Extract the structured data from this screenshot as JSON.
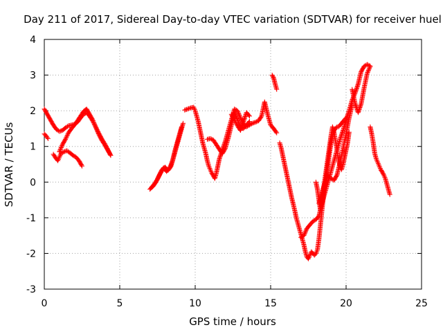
{
  "chart_data": {
    "type": "scatter",
    "title": "Day 211 of 2017, Sidereal Day-to-day VTEC variation (SDTVAR) for receiver huel",
    "xlabel": "GPS time / hours",
    "ylabel": "SDTVAR / TECUs",
    "xlim": [
      0,
      25
    ],
    "ylim": [
      -3,
      4
    ],
    "xticks": [
      0,
      5,
      10,
      15,
      20,
      25
    ],
    "yticks": [
      -3,
      -2,
      -1,
      0,
      1,
      2,
      3,
      4
    ],
    "grid": true,
    "marker": "+",
    "color": "#ff0000",
    "series": [
      {
        "name": "SDTVAR",
        "segments": [
          [
            [
              0.0,
              2.05
            ],
            [
              0.2,
              1.9
            ],
            [
              0.4,
              1.75
            ],
            [
              0.6,
              1.6
            ],
            [
              0.8,
              1.48
            ],
            [
              1.0,
              1.42
            ],
            [
              1.2,
              1.45
            ],
            [
              1.4,
              1.52
            ],
            [
              1.6,
              1.58
            ],
            [
              1.8,
              1.6
            ],
            [
              2.0,
              1.62
            ],
            [
              2.2,
              1.68
            ],
            [
              2.4,
              1.8
            ],
            [
              2.6,
              1.9
            ],
            [
              2.8,
              1.95
            ],
            [
              3.0,
              1.85
            ],
            [
              3.2,
              1.72
            ],
            [
              3.4,
              1.55
            ],
            [
              3.6,
              1.35
            ],
            [
              3.8,
              1.18
            ],
            [
              4.0,
              1.05
            ],
            [
              4.2,
              0.9
            ],
            [
              4.4,
              0.75
            ]
          ],
          [
            [
              0.0,
              1.35
            ],
            [
              0.15,
              1.28
            ],
            [
              0.25,
              1.22
            ]
          ],
          [
            [
              0.6,
              0.78
            ],
            [
              0.8,
              0.65
            ],
            [
              0.9,
              0.6
            ],
            [
              1.0,
              0.7
            ],
            [
              1.1,
              0.8
            ],
            [
              1.3,
              0.85
            ],
            [
              1.5,
              0.88
            ],
            [
              1.7,
              0.82
            ],
            [
              1.9,
              0.75
            ],
            [
              2.1,
              0.7
            ],
            [
              2.3,
              0.6
            ],
            [
              2.5,
              0.45
            ]
          ],
          [
            [
              1.0,
              0.85
            ],
            [
              1.2,
              1.05
            ],
            [
              1.4,
              1.2
            ],
            [
              1.6,
              1.38
            ],
            [
              1.8,
              1.5
            ],
            [
              2.0,
              1.6
            ],
            [
              2.2,
              1.72
            ],
            [
              2.4,
              1.85
            ],
            [
              2.6,
              1.98
            ],
            [
              2.8,
              2.05
            ],
            [
              3.0,
              1.9
            ],
            [
              3.2,
              1.75
            ],
            [
              3.4,
              1.55
            ],
            [
              3.6,
              1.38
            ],
            [
              3.8,
              1.22
            ],
            [
              4.0,
              1.08
            ],
            [
              4.2,
              0.92
            ],
            [
              4.4,
              0.75
            ]
          ],
          [
            [
              7.0,
              -0.2
            ],
            [
              7.2,
              -0.12
            ],
            [
              7.4,
              0.0
            ],
            [
              7.6,
              0.18
            ],
            [
              7.8,
              0.35
            ],
            [
              8.0,
              0.42
            ],
            [
              8.2,
              0.33
            ],
            [
              8.4,
              0.45
            ],
            [
              8.6,
              0.75
            ],
            [
              8.8,
              1.05
            ],
            [
              9.0,
              1.35
            ],
            [
              9.2,
              1.65
            ]
          ],
          [
            [
              7.1,
              -0.15
            ],
            [
              7.3,
              -0.05
            ],
            [
              7.5,
              0.08
            ],
            [
              7.7,
              0.25
            ],
            [
              7.9,
              0.4
            ],
            [
              8.1,
              0.3
            ],
            [
              8.3,
              0.38
            ],
            [
              8.5,
              0.6
            ],
            [
              8.7,
              0.95
            ],
            [
              8.9,
              1.25
            ],
            [
              9.1,
              1.55
            ]
          ],
          [
            [
              9.3,
              2.02
            ],
            [
              9.5,
              2.05
            ],
            [
              9.7,
              2.08
            ],
            [
              9.9,
              2.1
            ],
            [
              10.0,
              2.0
            ],
            [
              10.1,
              1.85
            ],
            [
              10.2,
              1.7
            ],
            [
              10.3,
              1.5
            ],
            [
              10.4,
              1.3
            ],
            [
              10.5,
              1.1
            ],
            [
              10.6,
              0.95
            ],
            [
              10.7,
              0.8
            ],
            [
              10.8,
              0.6
            ],
            [
              10.9,
              0.45
            ],
            [
              11.0,
              0.35
            ],
            [
              11.1,
              0.25
            ],
            [
              11.2,
              0.18
            ],
            [
              11.3,
              0.1
            ],
            [
              11.4,
              0.25
            ],
            [
              11.5,
              0.45
            ],
            [
              11.6,
              0.65
            ],
            [
              11.8,
              0.9
            ],
            [
              12.0,
              1.15
            ],
            [
              12.2,
              1.45
            ],
            [
              12.4,
              1.75
            ],
            [
              12.6,
              2.05
            ],
            [
              12.8,
              2.0
            ],
            [
              13.0,
              1.8
            ],
            [
              13.2,
              1.62
            ],
            [
              13.4,
              1.55
            ],
            [
              13.6,
              1.6
            ],
            [
              13.8,
              1.65
            ],
            [
              14.0,
              1.68
            ],
            [
              14.2,
              1.72
            ],
            [
              14.4,
              1.85
            ],
            [
              14.6,
              2.25
            ],
            [
              14.8,
              1.9
            ],
            [
              15.0,
              1.6
            ],
            [
              15.2,
              1.5
            ],
            [
              15.4,
              1.38
            ]
          ],
          [
            [
              10.8,
              1.2
            ],
            [
              11.0,
              1.22
            ],
            [
              11.2,
              1.18
            ],
            [
              11.4,
              1.05
            ],
            [
              11.6,
              0.92
            ],
            [
              11.8,
              0.8
            ],
            [
              12.0,
              0.95
            ],
            [
              12.2,
              1.25
            ],
            [
              12.4,
              1.6
            ],
            [
              12.6,
              1.95
            ],
            [
              12.8,
              1.75
            ],
            [
              13.0,
              1.55
            ],
            [
              13.2,
              1.5
            ],
            [
              13.4,
              1.6
            ],
            [
              13.6,
              1.7
            ]
          ],
          [
            [
              12.4,
              1.9
            ],
            [
              12.6,
              1.75
            ],
            [
              12.8,
              1.58
            ],
            [
              13.0,
              1.45
            ],
            [
              13.2,
              1.7
            ],
            [
              13.4,
              1.95
            ],
            [
              13.6,
              1.85
            ]
          ],
          [
            [
              15.1,
              3.0
            ],
            [
              15.2,
              2.92
            ],
            [
              15.3,
              2.75
            ],
            [
              15.4,
              2.6
            ]
          ],
          [
            [
              15.6,
              1.1
            ],
            [
              15.7,
              0.95
            ],
            [
              15.8,
              0.75
            ],
            [
              15.9,
              0.55
            ],
            [
              16.0,
              0.35
            ],
            [
              16.1,
              0.15
            ],
            [
              16.2,
              -0.05
            ],
            [
              16.3,
              -0.25
            ],
            [
              16.4,
              -0.45
            ],
            [
              16.5,
              -0.62
            ],
            [
              16.6,
              -0.8
            ],
            [
              16.7,
              -1.0
            ],
            [
              16.8,
              -1.15
            ],
            [
              16.9,
              -1.3
            ],
            [
              17.0,
              -1.45
            ],
            [
              17.1,
              -1.6
            ],
            [
              17.2,
              -1.75
            ],
            [
              17.3,
              -1.95
            ],
            [
              17.4,
              -2.1
            ],
            [
              17.5,
              -2.15
            ],
            [
              17.6,
              -2.05
            ],
            [
              17.7,
              -1.95
            ],
            [
              17.8,
              -2.0
            ],
            [
              17.9,
              -2.05
            ],
            [
              18.0,
              -2.0
            ],
            [
              18.1,
              -1.9
            ],
            [
              18.2,
              -1.6
            ],
            [
              18.3,
              -1.2
            ],
            [
              18.4,
              -0.8
            ],
            [
              18.5,
              -0.4
            ],
            [
              18.6,
              -0.1
            ],
            [
              18.7,
              0.2
            ],
            [
              18.8,
              0.5
            ],
            [
              18.9,
              0.8
            ],
            [
              19.0,
              1.1
            ],
            [
              19.1,
              1.3
            ],
            [
              19.2,
              1.45
            ],
            [
              19.3,
              1.5
            ],
            [
              19.4,
              1.55
            ],
            [
              19.5,
              1.55
            ],
            [
              19.6,
              1.6
            ],
            [
              19.8,
              1.7
            ],
            [
              20.0,
              1.8
            ]
          ],
          [
            [
              17.0,
              -1.55
            ],
            [
              17.2,
              -1.5
            ],
            [
              17.4,
              -1.3
            ],
            [
              17.6,
              -1.2
            ],
            [
              17.8,
              -1.1
            ],
            [
              18.0,
              -1.05
            ],
            [
              18.2,
              -0.95
            ],
            [
              18.4,
              -0.6
            ],
            [
              18.6,
              -0.3
            ],
            [
              18.8,
              0.0
            ],
            [
              19.0,
              0.3
            ],
            [
              19.2,
              0.6
            ],
            [
              19.4,
              0.9
            ],
            [
              19.6,
              1.2
            ],
            [
              19.8,
              1.45
            ],
            [
              20.0,
              1.75
            ],
            [
              20.2,
              2.0
            ],
            [
              20.4,
              2.3
            ],
            [
              20.6,
              2.5
            ],
            [
              20.8,
              2.75
            ],
            [
              21.0,
              3.1
            ],
            [
              21.2,
              3.25
            ],
            [
              21.4,
              3.3
            ],
            [
              21.6,
              3.25
            ]
          ],
          [
            [
              18.0,
              0.0
            ],
            [
              18.1,
              -0.2
            ],
            [
              18.2,
              -0.5
            ],
            [
              18.3,
              -0.8
            ],
            [
              18.4,
              -0.5
            ],
            [
              18.5,
              -0.2
            ],
            [
              18.6,
              0.1
            ],
            [
              18.7,
              0.4
            ],
            [
              18.8,
              0.7
            ],
            [
              18.9,
              1.0
            ],
            [
              19.0,
              1.3
            ],
            [
              19.1,
              1.55
            ],
            [
              19.2,
              1.4
            ],
            [
              19.3,
              1.15
            ],
            [
              19.4,
              0.9
            ],
            [
              19.5,
              0.6
            ],
            [
              19.6,
              0.45
            ],
            [
              19.7,
              0.35
            ],
            [
              19.8,
              0.5
            ],
            [
              19.9,
              0.7
            ],
            [
              20.0,
              0.9
            ],
            [
              20.1,
              1.1
            ],
            [
              20.2,
              1.4
            ]
          ],
          [
            [
              18.2,
              -0.6
            ],
            [
              18.4,
              -0.3
            ],
            [
              18.6,
              0.0
            ],
            [
              18.8,
              0.2
            ],
            [
              19.0,
              0.1
            ],
            [
              19.2,
              0.05
            ],
            [
              19.4,
              0.2
            ],
            [
              19.6,
              0.55
            ],
            [
              19.8,
              0.95
            ],
            [
              20.0,
              1.35
            ],
            [
              20.2,
              1.8
            ],
            [
              20.4,
              2.15
            ]
          ],
          [
            [
              20.4,
              2.6
            ],
            [
              20.6,
              2.2
            ],
            [
              20.8,
              1.95
            ],
            [
              21.0,
              2.2
            ],
            [
              21.2,
              2.65
            ],
            [
              21.4,
              3.05
            ],
            [
              21.6,
              3.25
            ]
          ],
          [
            [
              21.6,
              1.55
            ],
            [
              21.7,
              1.35
            ],
            [
              21.8,
              1.1
            ],
            [
              21.9,
              0.8
            ],
            [
              22.0,
              0.65
            ],
            [
              22.1,
              0.55
            ],
            [
              22.2,
              0.45
            ],
            [
              22.3,
              0.35
            ],
            [
              22.4,
              0.28
            ],
            [
              22.5,
              0.2
            ],
            [
              22.6,
              0.1
            ],
            [
              22.7,
              -0.05
            ],
            [
              22.8,
              -0.2
            ],
            [
              22.9,
              -0.35
            ]
          ]
        ]
      }
    ]
  }
}
